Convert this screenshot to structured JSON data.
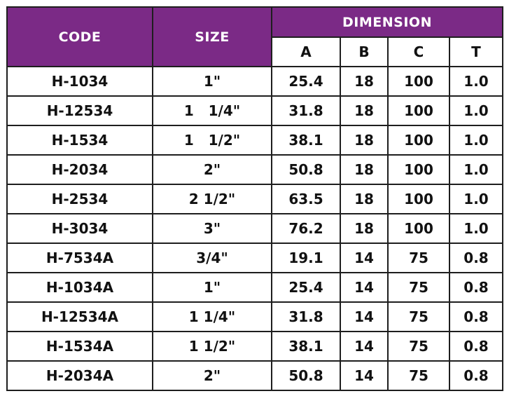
{
  "table": {
    "headers": {
      "code": "CODE",
      "size": "SIZE",
      "dimension": "DIMENSION",
      "a": "A",
      "b": "B",
      "c": "C",
      "t": "T"
    },
    "colors": {
      "header_bg": "#7b2a86",
      "header_text": "#ffffff",
      "border": "#1e1e1e"
    },
    "rows": [
      {
        "code": "H-1034",
        "size": "1\"",
        "a": "25.4",
        "b": "18",
        "c": "100",
        "t": "1.0"
      },
      {
        "code": "H-12534",
        "size": "1   1/4\"",
        "a": "31.8",
        "b": "18",
        "c": "100",
        "t": "1.0"
      },
      {
        "code": "H-1534",
        "size": "1   1/2\"",
        "a": "38.1",
        "b": "18",
        "c": "100",
        "t": "1.0"
      },
      {
        "code": "H-2034",
        "size": "2\"",
        "a": "50.8",
        "b": "18",
        "c": "100",
        "t": "1.0"
      },
      {
        "code": "H-2534",
        "size": "2 1/2\"",
        "a": "63.5",
        "b": "18",
        "c": "100",
        "t": "1.0"
      },
      {
        "code": "H-3034",
        "size": "3\"",
        "a": "76.2",
        "b": "18",
        "c": "100",
        "t": "1.0"
      },
      {
        "code": "H-7534A",
        "size": "3/4\"",
        "a": "19.1",
        "b": "14",
        "c": "75",
        "t": "0.8"
      },
      {
        "code": "H-1034A",
        "size": "1\"",
        "a": "25.4",
        "b": "14",
        "c": "75",
        "t": "0.8"
      },
      {
        "code": "H-12534A",
        "size": "1 1/4\"",
        "a": "31.8",
        "b": "14",
        "c": "75",
        "t": "0.8"
      },
      {
        "code": "H-1534A",
        "size": "1 1/2\"",
        "a": "38.1",
        "b": "14",
        "c": "75",
        "t": "0.8"
      },
      {
        "code": "H-2034A",
        "size": "2\"",
        "a": "50.8",
        "b": "14",
        "c": "75",
        "t": "0.8"
      }
    ]
  }
}
